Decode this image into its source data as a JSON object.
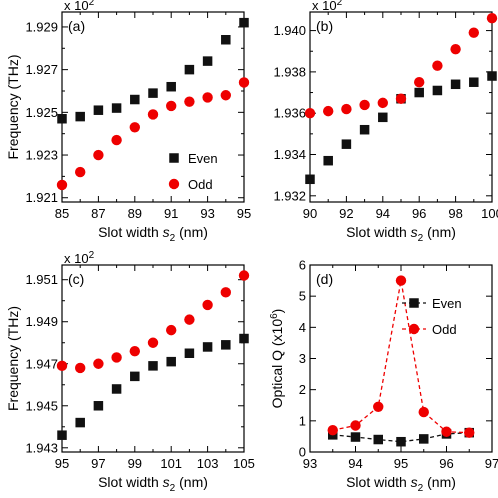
{
  "colors": {
    "even": "#111111",
    "odd": "#ee0000"
  },
  "chart_data": [
    {
      "id": "a",
      "type": "scatter",
      "panel_label": "(a)",
      "scale_note": "x 10",
      "scale_exp": "2",
      "xlabel": "Slot width ",
      "xlabel_var": "s",
      "xlabel_sub": "2",
      "xlabel_unit": " (nm)",
      "ylabel": "Frequency (THz)",
      "xlim": [
        85,
        95
      ],
      "ylim": [
        1.9208,
        1.9297
      ],
      "xticks": [
        85,
        87,
        89,
        91,
        93,
        95
      ],
      "xtick_labels": [
        "85",
        "87",
        "89",
        "91",
        "93",
        "95"
      ],
      "xminor": [
        86,
        88,
        90,
        92,
        94
      ],
      "yticks": [
        1.921,
        1.923,
        1.925,
        1.927,
        1.929
      ],
      "ytick_labels": [
        "1.921",
        "1.923",
        "1.925",
        "1.927",
        "1.929"
      ],
      "yminor": [
        1.922,
        1.924,
        1.926,
        1.928
      ],
      "legend": {
        "show": true,
        "placement": "lower-right",
        "even_label": "Even",
        "odd_label": "Odd"
      },
      "series": [
        {
          "name": "Even",
          "marker": "square",
          "color_key": "even",
          "line": false,
          "x": [
            85,
            86,
            87,
            88,
            89,
            90,
            91,
            92,
            93,
            94,
            95
          ],
          "y": [
            1.9247,
            1.9248,
            1.9251,
            1.9252,
            1.9256,
            1.9259,
            1.9262,
            1.927,
            1.9274,
            1.9284,
            1.9292
          ]
        },
        {
          "name": "Odd",
          "marker": "circle",
          "color_key": "odd",
          "line": false,
          "x": [
            85,
            86,
            87,
            88,
            89,
            90,
            91,
            92,
            93,
            94,
            95
          ],
          "y": [
            1.9216,
            1.9222,
            1.923,
            1.9237,
            1.9243,
            1.9249,
            1.9253,
            1.9255,
            1.9257,
            1.9258,
            1.9264
          ]
        }
      ]
    },
    {
      "id": "b",
      "type": "scatter",
      "panel_label": "(b)",
      "scale_note": "x 10",
      "scale_exp": "2",
      "xlabel": "Slot width ",
      "xlabel_var": "s",
      "xlabel_sub": "2",
      "xlabel_unit": " (nm)",
      "ylabel": "",
      "xlim": [
        90,
        100
      ],
      "ylim": [
        1.9317,
        1.9409
      ],
      "xticks": [
        90,
        92,
        94,
        96,
        98,
        100
      ],
      "xtick_labels": [
        "90",
        "92",
        "94",
        "96",
        "98",
        "100"
      ],
      "xminor": [
        91,
        93,
        95,
        97,
        99
      ],
      "yticks": [
        1.932,
        1.934,
        1.936,
        1.938,
        1.94
      ],
      "ytick_labels": [
        "1.932",
        "1.934",
        "1.936",
        "1.938",
        "1.940"
      ],
      "yminor": [
        1.933,
        1.935,
        1.937,
        1.939
      ],
      "legend": {
        "show": false
      },
      "series": [
        {
          "name": "Even",
          "marker": "square",
          "color_key": "even",
          "line": false,
          "x": [
            90,
            91,
            92,
            93,
            94,
            95,
            96,
            97,
            98,
            99,
            100
          ],
          "y": [
            1.9328,
            1.9337,
            1.9345,
            1.9352,
            1.9358,
            1.9367,
            1.937,
            1.9371,
            1.9374,
            1.9375,
            1.9378
          ]
        },
        {
          "name": "Odd",
          "marker": "circle",
          "color_key": "odd",
          "line": false,
          "x": [
            90,
            91,
            92,
            93,
            94,
            95,
            96,
            97,
            98,
            99,
            100
          ],
          "y": [
            1.936,
            1.9361,
            1.9362,
            1.9364,
            1.9365,
            1.9367,
            1.9375,
            1.9383,
            1.9391,
            1.9399,
            1.9406
          ]
        }
      ]
    },
    {
      "id": "c",
      "type": "scatter",
      "panel_label": "(c)",
      "scale_note": "x 10",
      "scale_exp": "2",
      "xlabel": "Slot width ",
      "xlabel_var": "s",
      "xlabel_sub": "2",
      "xlabel_unit": " (nm)",
      "ylabel": "Frequency (THz)",
      "xlim": [
        95,
        105
      ],
      "ylim": [
        1.9428,
        1.9517
      ],
      "xticks": [
        95,
        97,
        99,
        101,
        103,
        105
      ],
      "xtick_labels": [
        "95",
        "97",
        "99",
        "101",
        "103",
        "105"
      ],
      "xminor": [
        96,
        98,
        100,
        102,
        104
      ],
      "yticks": [
        1.943,
        1.945,
        1.947,
        1.949,
        1.951
      ],
      "ytick_labels": [
        "1.943",
        "1.945",
        "1.947",
        "1.949",
        "1.951"
      ],
      "yminor": [
        1.944,
        1.946,
        1.948,
        1.95
      ],
      "legend": {
        "show": false
      },
      "series": [
        {
          "name": "Even",
          "marker": "square",
          "color_key": "even",
          "line": false,
          "x": [
            95,
            96,
            97,
            98,
            99,
            100,
            101,
            102,
            103,
            104,
            105
          ],
          "y": [
            1.9436,
            1.9442,
            1.945,
            1.9458,
            1.9464,
            1.9469,
            1.9471,
            1.9475,
            1.9478,
            1.9479,
            1.9482
          ]
        },
        {
          "name": "Odd",
          "marker": "circle",
          "color_key": "odd",
          "line": false,
          "x": [
            95,
            96,
            97,
            98,
            99,
            100,
            101,
            102,
            103,
            104,
            105
          ],
          "y": [
            1.9469,
            1.9468,
            1.947,
            1.9473,
            1.9476,
            1.948,
            1.9486,
            1.9491,
            1.9498,
            1.9504,
            1.9512
          ]
        }
      ]
    },
    {
      "id": "d",
      "type": "line",
      "panel_label": "(d)",
      "xlabel": "Slot width ",
      "xlabel_var": "s",
      "xlabel_sub": "2",
      "xlabel_unit": " (nm)",
      "ylabel": "Optical Q (x10",
      "ylabel_exp": "6",
      "ylabel_end": ")",
      "xlim": [
        93,
        97
      ],
      "ylim": [
        0,
        6
      ],
      "xticks": [
        93,
        94,
        95,
        96,
        97
      ],
      "xtick_labels": [
        "93",
        "94",
        "95",
        "96",
        "97"
      ],
      "xminor": [
        93.5,
        94.5,
        95.5,
        96.5
      ],
      "yticks": [
        0,
        1,
        2,
        3,
        4,
        5,
        6
      ],
      "ytick_labels": [
        "0",
        "1",
        "2",
        "3",
        "4",
        "5",
        "6"
      ],
      "yminor": [],
      "legend": {
        "show": true,
        "placement": "upper-right",
        "even_label": "Even",
        "odd_label": "Odd"
      },
      "series": [
        {
          "name": "Even",
          "marker": "square",
          "color_key": "even",
          "line": true,
          "x": [
            93.5,
            94,
            94.5,
            95,
            95.5,
            96,
            96.5
          ],
          "y": [
            0.55,
            0.48,
            0.4,
            0.33,
            0.42,
            0.58,
            0.62
          ]
        },
        {
          "name": "Odd",
          "marker": "circle",
          "color_key": "odd",
          "line": true,
          "x": [
            93.5,
            94,
            94.5,
            95,
            95.5,
            96,
            96.5
          ],
          "y": [
            0.7,
            0.85,
            1.45,
            5.5,
            1.28,
            0.65,
            0.62
          ]
        }
      ]
    }
  ]
}
